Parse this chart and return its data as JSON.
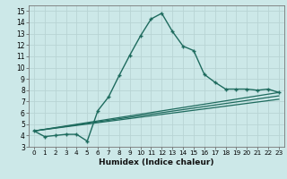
{
  "xlabel": "Humidex (Indice chaleur)",
  "bg_color": "#cce8e8",
  "grid_color": "#b8d4d4",
  "line_color": "#1e6b5e",
  "xlim": [
    -0.5,
    23.5
  ],
  "ylim": [
    3,
    15.5
  ],
  "xticks": [
    0,
    1,
    2,
    3,
    4,
    5,
    6,
    7,
    8,
    9,
    10,
    11,
    12,
    13,
    14,
    15,
    16,
    17,
    18,
    19,
    20,
    21,
    22,
    23
  ],
  "yticks": [
    3,
    4,
    5,
    6,
    7,
    8,
    9,
    10,
    11,
    12,
    13,
    14,
    15
  ],
  "line1_x": [
    0,
    1,
    2,
    3,
    4,
    5,
    6,
    7,
    8,
    9,
    10,
    11,
    12,
    13,
    14,
    15,
    16,
    17,
    18,
    19,
    20,
    21,
    22,
    23
  ],
  "line1_y": [
    4.4,
    3.9,
    4.0,
    4.1,
    4.1,
    3.5,
    6.2,
    7.4,
    9.3,
    11.1,
    12.8,
    14.3,
    14.8,
    13.2,
    11.9,
    11.5,
    9.4,
    8.7,
    8.1,
    8.1,
    8.1,
    8.0,
    8.1,
    7.8
  ],
  "line2_x": [
    0,
    23
  ],
  "line2_y": [
    4.4,
    7.8
  ],
  "line3_x": [
    0,
    23
  ],
  "line3_y": [
    4.4,
    7.5
  ],
  "line4_x": [
    0,
    23
  ],
  "line4_y": [
    4.4,
    7.2
  ]
}
